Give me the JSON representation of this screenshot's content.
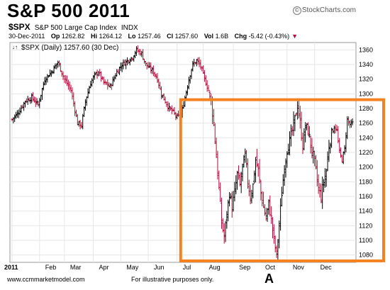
{
  "title": "S&P 500 2011",
  "logo": "StockCharts.com",
  "header": {
    "symbol": "$SPX",
    "description": "S&P 500 Large Cap Index",
    "exchange": "INDX",
    "date": "30-Dec-2011",
    "op_label": "Op",
    "op": "1262.82",
    "hi_label": "Hi",
    "hi": "1264.12",
    "lo_label": "Lo",
    "lo": "1257.46",
    "cl_label": "Cl",
    "cl": "1257.60",
    "vol_label": "Vol",
    "vol": "1.6B",
    "chg_label": "Chg",
    "chg": "-5.42 (-0.43%)"
  },
  "legend": "$SPX (Daily) 1257.60 (30 Dec)",
  "footer": {
    "left": "www.ccmmarketmodel.com",
    "middle": "For illustrative purposes only.",
    "letter": "A"
  },
  "colors": {
    "up_bar": "#000000",
    "down_bar": "#b0103a",
    "highlight_box": "#f58220"
  },
  "chart_data": {
    "type": "ohlc",
    "ylim": [
      1070,
      1370
    ],
    "y_ticks": [
      1080,
      1100,
      1120,
      1140,
      1160,
      1180,
      1200,
      1220,
      1240,
      1260,
      1280,
      1300,
      1320,
      1340,
      1360
    ],
    "x_tick_labels": [
      "2011",
      "Feb",
      "Mar",
      "Apr",
      "May",
      "Jun",
      "Jul",
      "Aug",
      "Sep",
      "Oct",
      "Nov",
      "Dec"
    ],
    "grid": true,
    "highlight": {
      "x_start": "Jul",
      "x_end": "Dec",
      "y_range": [
        1072,
        1292
      ]
    },
    "series": [
      {
        "name": "$SPX",
        "close_points": [
          {
            "x": 0,
            "y": 1265
          },
          {
            "x": 5,
            "y": 1275
          },
          {
            "x": 10,
            "y": 1290
          },
          {
            "x": 15,
            "y": 1295
          },
          {
            "x": 20,
            "y": 1285
          },
          {
            "x": 25,
            "y": 1320
          },
          {
            "x": 30,
            "y": 1330
          },
          {
            "x": 35,
            "y": 1343
          },
          {
            "x": 40,
            "y": 1320
          },
          {
            "x": 45,
            "y": 1305
          },
          {
            "x": 50,
            "y": 1260
          },
          {
            "x": 53,
            "y": 1257
          },
          {
            "x": 56,
            "y": 1290
          },
          {
            "x": 60,
            "y": 1315
          },
          {
            "x": 63,
            "y": 1325
          },
          {
            "x": 66,
            "y": 1330
          },
          {
            "x": 70,
            "y": 1315
          },
          {
            "x": 75,
            "y": 1310
          },
          {
            "x": 80,
            "y": 1330
          },
          {
            "x": 84,
            "y": 1340
          },
          {
            "x": 88,
            "y": 1345
          },
          {
            "x": 92,
            "y": 1350
          },
          {
            "x": 95,
            "y": 1360
          },
          {
            "x": 99,
            "y": 1355
          },
          {
            "x": 102,
            "y": 1340
          },
          {
            "x": 105,
            "y": 1335
          },
          {
            "x": 108,
            "y": 1330
          },
          {
            "x": 111,
            "y": 1320
          },
          {
            "x": 114,
            "y": 1300
          },
          {
            "x": 117,
            "y": 1290
          },
          {
            "x": 120,
            "y": 1280
          },
          {
            "x": 123,
            "y": 1275
          },
          {
            "x": 126,
            "y": 1268
          },
          {
            "x": 129,
            "y": 1270
          },
          {
            "x": 132,
            "y": 1295
          },
          {
            "x": 135,
            "y": 1320
          },
          {
            "x": 138,
            "y": 1340
          },
          {
            "x": 141,
            "y": 1345
          },
          {
            "x": 144,
            "y": 1338
          },
          {
            "x": 147,
            "y": 1320
          },
          {
            "x": 150,
            "y": 1305
          },
          {
            "x": 152,
            "y": 1290
          },
          {
            "x": 154,
            "y": 1260
          },
          {
            "x": 156,
            "y": 1215
          },
          {
            "x": 158,
            "y": 1170
          },
          {
            "x": 160,
            "y": 1125
          },
          {
            "x": 162,
            "y": 1105
          },
          {
            "x": 164,
            "y": 1135
          },
          {
            "x": 166,
            "y": 1165
          },
          {
            "x": 168,
            "y": 1145
          },
          {
            "x": 170,
            "y": 1165
          },
          {
            "x": 172,
            "y": 1190
          },
          {
            "x": 174,
            "y": 1175
          },
          {
            "x": 176,
            "y": 1200
          },
          {
            "x": 178,
            "y": 1215
          },
          {
            "x": 180,
            "y": 1180
          },
          {
            "x": 182,
            "y": 1160
          },
          {
            "x": 184,
            "y": 1175
          },
          {
            "x": 186,
            "y": 1210
          },
          {
            "x": 188,
            "y": 1195
          },
          {
            "x": 190,
            "y": 1165
          },
          {
            "x": 192,
            "y": 1145
          },
          {
            "x": 194,
            "y": 1130
          },
          {
            "x": 196,
            "y": 1150
          },
          {
            "x": 198,
            "y": 1130
          },
          {
            "x": 200,
            "y": 1100
          },
          {
            "x": 202,
            "y": 1080
          },
          {
            "x": 204,
            "y": 1120
          },
          {
            "x": 206,
            "y": 1165
          },
          {
            "x": 208,
            "y": 1200
          },
          {
            "x": 210,
            "y": 1225
          },
          {
            "x": 212,
            "y": 1235
          },
          {
            "x": 214,
            "y": 1250
          },
          {
            "x": 216,
            "y": 1265
          },
          {
            "x": 218,
            "y": 1285
          },
          {
            "x": 220,
            "y": 1260
          },
          {
            "x": 222,
            "y": 1230
          },
          {
            "x": 224,
            "y": 1255
          },
          {
            "x": 226,
            "y": 1250
          },
          {
            "x": 228,
            "y": 1230
          },
          {
            "x": 230,
            "y": 1215
          },
          {
            "x": 232,
            "y": 1195
          },
          {
            "x": 234,
            "y": 1170
          },
          {
            "x": 236,
            "y": 1160
          },
          {
            "x": 238,
            "y": 1180
          },
          {
            "x": 240,
            "y": 1195
          },
          {
            "x": 242,
            "y": 1230
          },
          {
            "x": 244,
            "y": 1245
          },
          {
            "x": 246,
            "y": 1255
          },
          {
            "x": 248,
            "y": 1250
          },
          {
            "x": 250,
            "y": 1220
          },
          {
            "x": 252,
            "y": 1210
          },
          {
            "x": 254,
            "y": 1225
          },
          {
            "x": 256,
            "y": 1265
          },
          {
            "x": 258,
            "y": 1258
          },
          {
            "x": 260,
            "y": 1260
          }
        ]
      }
    ]
  }
}
